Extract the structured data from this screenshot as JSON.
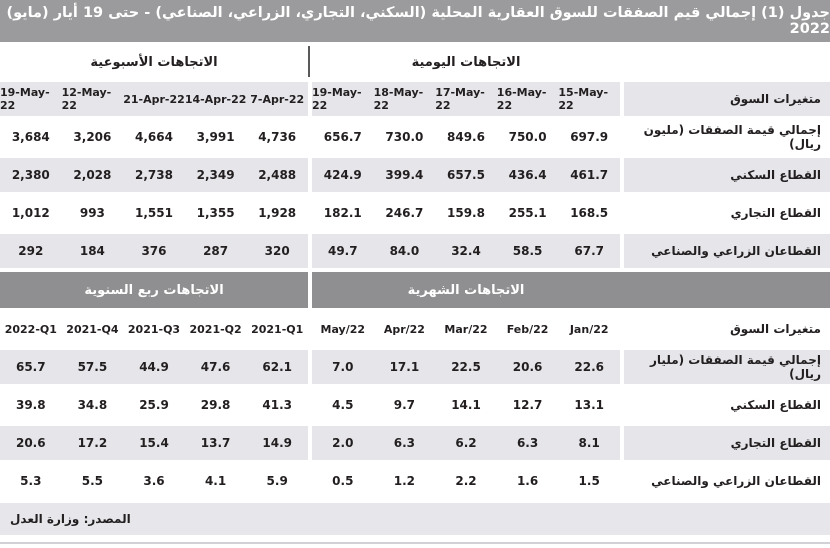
{
  "title": "جدول (1) إجمالي قيم الصفقات للسوق العقارية المحلية (السكني، التجاري، الزراعي، الصناعي) - حتى 19 أيار (مايو) 2022",
  "source": "المصدر: وزارة العدل",
  "colors": {
    "title_bar": "#9b9b9d",
    "section_bar": "#8f8f91",
    "row_stripe": "#e6e6ea",
    "divider_line": "#59595b"
  },
  "tables": [
    {
      "left_section_label": "الاتجاهات الأسبوعية",
      "right_section_label": "الاتجاهات اليومية",
      "label_header": "متغيرات السوق",
      "shade_header": true,
      "left_columns": [
        "19-May-22",
        "12-May-22",
        "21-Apr-22",
        "14-Apr-22",
        "7-Apr-22"
      ],
      "right_columns": [
        "19-May-22",
        "18-May-22",
        "17-May-22",
        "16-May-22",
        "15-May-22"
      ],
      "rows": [
        {
          "label": "إجمالي قيمة الصفقات (مليون ريال)",
          "left_values": [
            "3,684",
            "3,206",
            "4,664",
            "3,991",
            "4,736"
          ],
          "right_values": [
            "656.7",
            "730.0",
            "849.6",
            "750.0",
            "697.9"
          ]
        },
        {
          "label": "القطاع السكني",
          "left_values": [
            "2,380",
            "2,028",
            "2,738",
            "2,349",
            "2,488"
          ],
          "right_values": [
            "424.9",
            "399.4",
            "657.5",
            "436.4",
            "461.7"
          ]
        },
        {
          "label": "القطاع التجاري",
          "left_values": [
            "1,012",
            "993",
            "1,551",
            "1,355",
            "1,928"
          ],
          "right_values": [
            "182.1",
            "246.7",
            "159.8",
            "255.1",
            "168.5"
          ]
        },
        {
          "label": "القطاعان الزراعي والصناعي",
          "left_values": [
            "292",
            "184",
            "376",
            "287",
            "320"
          ],
          "right_values": [
            "49.7",
            "84.0",
            "32.4",
            "58.5",
            "67.7"
          ]
        }
      ]
    },
    {
      "left_section_label": "الاتجاهات ربع السنوية",
      "right_section_label": "الاتجاهات الشهرية",
      "label_header": "متغيرات السوق",
      "shade_header": false,
      "left_columns": [
        "2022-Q1",
        "2021-Q4",
        "2021-Q3",
        "2021-Q2",
        "2021-Q1"
      ],
      "right_columns": [
        "May/22",
        "Apr/22",
        "Mar/22",
        "Feb/22",
        "Jan/22"
      ],
      "rows": [
        {
          "label": "إجمالي قيمة الصفقات (مليار ريال)",
          "left_values": [
            "65.7",
            "57.5",
            "44.9",
            "47.6",
            "62.1"
          ],
          "right_values": [
            "7.0",
            "17.1",
            "22.5",
            "20.6",
            "22.6"
          ]
        },
        {
          "label": "القطاع السكني",
          "left_values": [
            "39.8",
            "34.8",
            "25.9",
            "29.8",
            "41.3"
          ],
          "right_values": [
            "4.5",
            "9.7",
            "14.1",
            "12.7",
            "13.1"
          ]
        },
        {
          "label": "القطاع التجاري",
          "left_values": [
            "20.6",
            "17.2",
            "15.4",
            "13.7",
            "14.9"
          ],
          "right_values": [
            "2.0",
            "6.3",
            "6.2",
            "6.3",
            "8.1"
          ]
        },
        {
          "label": "القطاعان الزراعي والصناعي",
          "left_values": [
            "5.3",
            "5.5",
            "3.6",
            "4.1",
            "5.9"
          ],
          "right_values": [
            "0.5",
            "1.2",
            "2.2",
            "1.6",
            "1.5"
          ]
        }
      ]
    }
  ]
}
